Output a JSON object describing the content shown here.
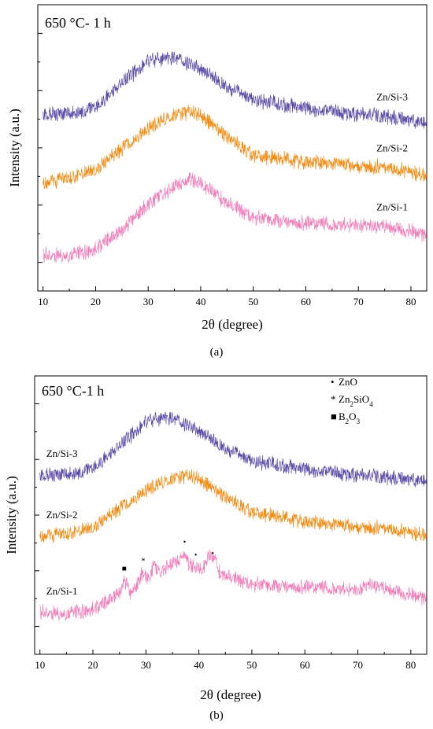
{
  "caption_a": "(a)",
  "caption_b": "(b)",
  "chart_data": [
    {
      "type": "line",
      "panel": "a",
      "annotation": "650 °C- 1 h",
      "xlabel": "2θ (degree)",
      "ylabel": "Intensity (a.u.)",
      "xlim": [
        9,
        83
      ],
      "xticks": [
        "10",
        "20",
        "30",
        "40",
        "50",
        "60",
        "70",
        "80"
      ],
      "grid": false,
      "series": [
        {
          "name": "Zn/Si-3",
          "color": "#5a4aa6",
          "x": [
            10,
            15,
            20,
            25,
            30,
            33,
            36,
            40,
            45,
            50,
            55,
            60,
            65,
            70,
            75,
            80,
            83
          ],
          "y": [
            5.9,
            5.85,
            6.1,
            6.9,
            7.6,
            7.75,
            7.7,
            7.35,
            6.75,
            6.35,
            6.2,
            6.05,
            5.95,
            5.85,
            5.8,
            5.65,
            5.55
          ]
        },
        {
          "name": "Zn/Si-2",
          "color": "#f08a10",
          "x": [
            10,
            15,
            20,
            25,
            30,
            35,
            38,
            40,
            45,
            50,
            55,
            60,
            65,
            70,
            75,
            80,
            83
          ],
          "y": [
            3.6,
            3.75,
            4.05,
            4.7,
            5.4,
            5.85,
            5.95,
            5.85,
            5.1,
            4.5,
            4.4,
            4.3,
            4.25,
            4.15,
            4.1,
            3.95,
            3.8
          ]
        },
        {
          "name": "Zn/Si-1",
          "color": "#f07bb8",
          "x": [
            10,
            15,
            20,
            25,
            30,
            35,
            38,
            40,
            45,
            50,
            55,
            60,
            65,
            70,
            75,
            80,
            83
          ],
          "y": [
            1.2,
            1.15,
            1.4,
            2.0,
            2.9,
            3.45,
            3.7,
            3.6,
            2.9,
            2.45,
            2.35,
            2.25,
            2.2,
            2.2,
            2.1,
            2.0,
            1.85
          ]
        }
      ]
    },
    {
      "type": "line",
      "panel": "b",
      "annotation": "650 °C-1 h",
      "xlabel": "2θ (degree)",
      "ylabel": "Intensity (a.u.)",
      "xlim": [
        9,
        83
      ],
      "xticks": [
        "10",
        "20",
        "30",
        "40",
        "50",
        "60",
        "70",
        "80"
      ],
      "grid": false,
      "legend": {
        "placement": "top-right",
        "entries": [
          {
            "symbol": "•",
            "label": "ZnO"
          },
          {
            "symbol": "*",
            "label": "Zn",
            "sub": "2",
            "label2": "SiO",
            "sub2": "4"
          },
          {
            "symbol": "■",
            "label": "B",
            "sub": "2",
            "label2": "O",
            "sub2": "3"
          }
        ]
      },
      "series": [
        {
          "name": "Zn/Si-3",
          "color": "#5a4aa6",
          "x": [
            10,
            15,
            20,
            25,
            30,
            33,
            36,
            40,
            45,
            50,
            55,
            60,
            65,
            70,
            75,
            80,
            83
          ],
          "y": [
            6.15,
            6.1,
            6.35,
            7.1,
            7.9,
            8.1,
            8.0,
            7.6,
            7.0,
            6.6,
            6.45,
            6.3,
            6.2,
            6.1,
            6.05,
            5.95,
            5.9
          ]
        },
        {
          "name": "Zn/Si-2",
          "color": "#f08a10",
          "x": [
            10,
            15,
            20,
            25,
            30,
            35,
            38,
            40,
            45,
            50,
            55,
            60,
            65,
            70,
            75,
            80,
            83
          ],
          "y": [
            4.05,
            4.1,
            4.35,
            4.95,
            5.6,
            6.0,
            6.1,
            6.0,
            5.35,
            4.85,
            4.7,
            4.55,
            4.45,
            4.35,
            4.3,
            4.15,
            4.05
          ]
        },
        {
          "name": "Zn/Si-1",
          "color": "#f07bb8",
          "x": [
            10,
            15,
            20,
            22,
            25,
            26,
            27,
            28,
            29.5,
            30.5,
            31.5,
            32.5,
            34,
            36,
            37.3,
            38,
            39.3,
            40.5,
            42,
            43,
            44,
            46,
            50,
            55,
            60,
            65,
            70,
            72.5,
            75,
            80,
            83
          ],
          "y": [
            1.45,
            1.35,
            1.55,
            1.7,
            2.1,
            2.55,
            2.05,
            2.25,
            2.85,
            2.55,
            3.05,
            2.75,
            3.0,
            3.15,
            3.45,
            3.05,
            3.0,
            2.9,
            3.35,
            3.25,
            2.75,
            2.6,
            2.4,
            2.35,
            2.3,
            2.25,
            2.2,
            2.4,
            2.2,
            2.05,
            1.9
          ]
        }
      ],
      "peak_markers": [
        {
          "symbol": "■",
          "x": 25.9,
          "y": 2.85
        },
        {
          "symbol": "*",
          "x": 29.5,
          "y": 3.1
        },
        {
          "symbol": "•",
          "x": 37.3,
          "y": 3.75
        },
        {
          "symbol": "•",
          "x": 39.4,
          "y": 3.3
        },
        {
          "symbol": "•",
          "x": 42.6,
          "y": 3.35
        }
      ]
    }
  ]
}
